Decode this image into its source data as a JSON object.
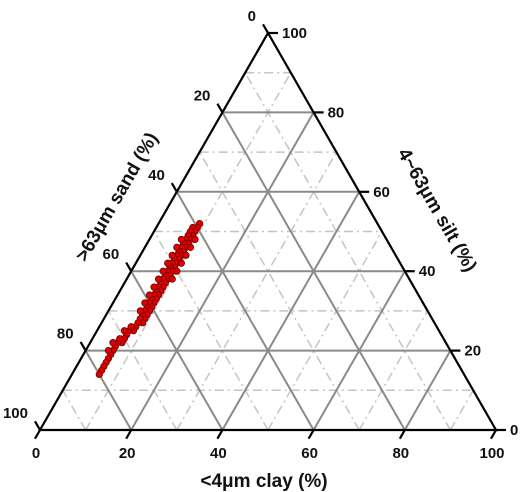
{
  "chart_data": {
    "type": "scatter",
    "subtype": "ternary",
    "axes": {
      "bottom": {
        "label": "<4μm clay (%)",
        "ticks": [
          "0",
          "20",
          "40",
          "60",
          "80",
          "100"
        ]
      },
      "left": {
        "label": ">63μm sand (%)",
        "ticks": [
          "0",
          "20",
          "40",
          "60",
          "80",
          "100"
        ]
      },
      "right": {
        "label": "4~63μm silt (%)",
        "ticks": [
          "0",
          "20",
          "40",
          "60",
          "80",
          "100"
        ]
      }
    },
    "major_grid_step": 20,
    "minor_grid_step": 10,
    "grid": true,
    "marker_color": "#e00000",
    "components": [
      "sand",
      "silt",
      "clay"
    ],
    "points": [
      {
        "sand": 39,
        "silt": 52,
        "clay": 9
      },
      {
        "sand": 40,
        "silt": 51,
        "clay": 9
      },
      {
        "sand": 41,
        "silt": 51,
        "clay": 8
      },
      {
        "sand": 41,
        "silt": 50,
        "clay": 9
      },
      {
        "sand": 42,
        "silt": 50,
        "clay": 8
      },
      {
        "sand": 42,
        "silt": 49,
        "clay": 9
      },
      {
        "sand": 43,
        "silt": 49,
        "clay": 8
      },
      {
        "sand": 43,
        "silt": 48,
        "clay": 9
      },
      {
        "sand": 44,
        "silt": 48,
        "clay": 8
      },
      {
        "sand": 44,
        "silt": 47,
        "clay": 9
      },
      {
        "sand": 45,
        "silt": 47,
        "clay": 8
      },
      {
        "sand": 45,
        "silt": 46,
        "clay": 9
      },
      {
        "sand": 46,
        "silt": 46,
        "clay": 8
      },
      {
        "sand": 46,
        "silt": 45,
        "clay": 9
      },
      {
        "sand": 47,
        "silt": 45,
        "clay": 8
      },
      {
        "sand": 47,
        "silt": 44,
        "clay": 9
      },
      {
        "sand": 48,
        "silt": 44,
        "clay": 8
      },
      {
        "sand": 48,
        "silt": 43,
        "clay": 9
      },
      {
        "sand": 49,
        "silt": 43,
        "clay": 8
      },
      {
        "sand": 49,
        "silt": 42,
        "clay": 9
      },
      {
        "sand": 50,
        "silt": 42,
        "clay": 8
      },
      {
        "sand": 50,
        "silt": 41,
        "clay": 9
      },
      {
        "sand": 51,
        "silt": 41,
        "clay": 8
      },
      {
        "sand": 51,
        "silt": 40,
        "clay": 9
      },
      {
        "sand": 52,
        "silt": 40,
        "clay": 8
      },
      {
        "sand": 52,
        "silt": 39,
        "clay": 9
      },
      {
        "sand": 53,
        "silt": 39,
        "clay": 8
      },
      {
        "sand": 53,
        "silt": 38,
        "clay": 9
      },
      {
        "sand": 54,
        "silt": 38,
        "clay": 8
      },
      {
        "sand": 54,
        "silt": 37,
        "clay": 9
      },
      {
        "sand": 55,
        "silt": 37,
        "clay": 8
      },
      {
        "sand": 55,
        "silt": 36,
        "clay": 9
      },
      {
        "sand": 56,
        "silt": 36,
        "clay": 8
      },
      {
        "sand": 56,
        "silt": 35,
        "clay": 9
      },
      {
        "sand": 57,
        "silt": 35,
        "clay": 8
      },
      {
        "sand": 57,
        "silt": 34,
        "clay": 9
      },
      {
        "sand": 58,
        "silt": 34,
        "clay": 8
      },
      {
        "sand": 58,
        "silt": 33,
        "clay": 9
      },
      {
        "sand": 59,
        "silt": 33,
        "clay": 8
      },
      {
        "sand": 59,
        "silt": 32,
        "clay": 9
      },
      {
        "sand": 60,
        "silt": 32,
        "clay": 8
      },
      {
        "sand": 60,
        "silt": 31,
        "clay": 9
      },
      {
        "sand": 61,
        "silt": 31,
        "clay": 8
      },
      {
        "sand": 61,
        "silt": 30,
        "clay": 9
      },
      {
        "sand": 62,
        "silt": 30,
        "clay": 8
      },
      {
        "sand": 62,
        "silt": 29,
        "clay": 9
      },
      {
        "sand": 63,
        "silt": 29,
        "clay": 8
      },
      {
        "sand": 63,
        "silt": 28,
        "clay": 9
      },
      {
        "sand": 64,
        "silt": 28,
        "clay": 8
      },
      {
        "sand": 64,
        "silt": 27,
        "clay": 9
      },
      {
        "sand": 65,
        "silt": 27,
        "clay": 8
      },
      {
        "sand": 66,
        "silt": 26,
        "clay": 8
      },
      {
        "sand": 67,
        "silt": 25,
        "clay": 8
      },
      {
        "sand": 68,
        "silt": 25,
        "clay": 7
      },
      {
        "sand": 69,
        "silt": 24,
        "clay": 7
      },
      {
        "sand": 70,
        "silt": 23,
        "clay": 7
      },
      {
        "sand": 71,
        "silt": 22,
        "clay": 7
      },
      {
        "sand": 72,
        "silt": 22,
        "clay": 6
      },
      {
        "sand": 73,
        "silt": 21,
        "clay": 6
      },
      {
        "sand": 74,
        "silt": 20,
        "clay": 6
      },
      {
        "sand": 75,
        "silt": 19,
        "clay": 6
      },
      {
        "sand": 76,
        "silt": 18,
        "clay": 6
      },
      {
        "sand": 77,
        "silt": 17,
        "clay": 6
      },
      {
        "sand": 42,
        "silt": 48,
        "clay": 10
      },
      {
        "sand": 44,
        "silt": 46,
        "clay": 10
      },
      {
        "sand": 46,
        "silt": 44,
        "clay": 10
      },
      {
        "sand": 48,
        "silt": 42,
        "clay": 10
      },
      {
        "sand": 50,
        "silt": 40,
        "clay": 10
      },
      {
        "sand": 52,
        "silt": 38,
        "clay": 10
      },
      {
        "sand": 45,
        "silt": 48,
        "clay": 7
      },
      {
        "sand": 47,
        "silt": 46,
        "clay": 7
      },
      {
        "sand": 49,
        "silt": 44,
        "clay": 7
      },
      {
        "sand": 51,
        "silt": 42,
        "clay": 7
      },
      {
        "sand": 53,
        "silt": 40,
        "clay": 7
      },
      {
        "sand": 55,
        "silt": 38,
        "clay": 7
      },
      {
        "sand": 57,
        "silt": 36,
        "clay": 7
      },
      {
        "sand": 59,
        "silt": 34,
        "clay": 7
      },
      {
        "sand": 61,
        "silt": 32,
        "clay": 7
      },
      {
        "sand": 63,
        "silt": 30,
        "clay": 7
      },
      {
        "sand": 67,
        "silt": 26,
        "clay": 7
      },
      {
        "sand": 69,
        "silt": 25,
        "clay": 6
      },
      {
        "sand": 71,
        "silt": 23,
        "clay": 6
      },
      {
        "sand": 73,
        "silt": 22,
        "clay": 5
      },
      {
        "sand": 75,
        "silt": 20,
        "clay": 5
      },
      {
        "sand": 78,
        "silt": 16,
        "clay": 6
      },
      {
        "sand": 79,
        "silt": 15,
        "clay": 6
      },
      {
        "sand": 80,
        "silt": 14,
        "clay": 6
      }
    ]
  }
}
